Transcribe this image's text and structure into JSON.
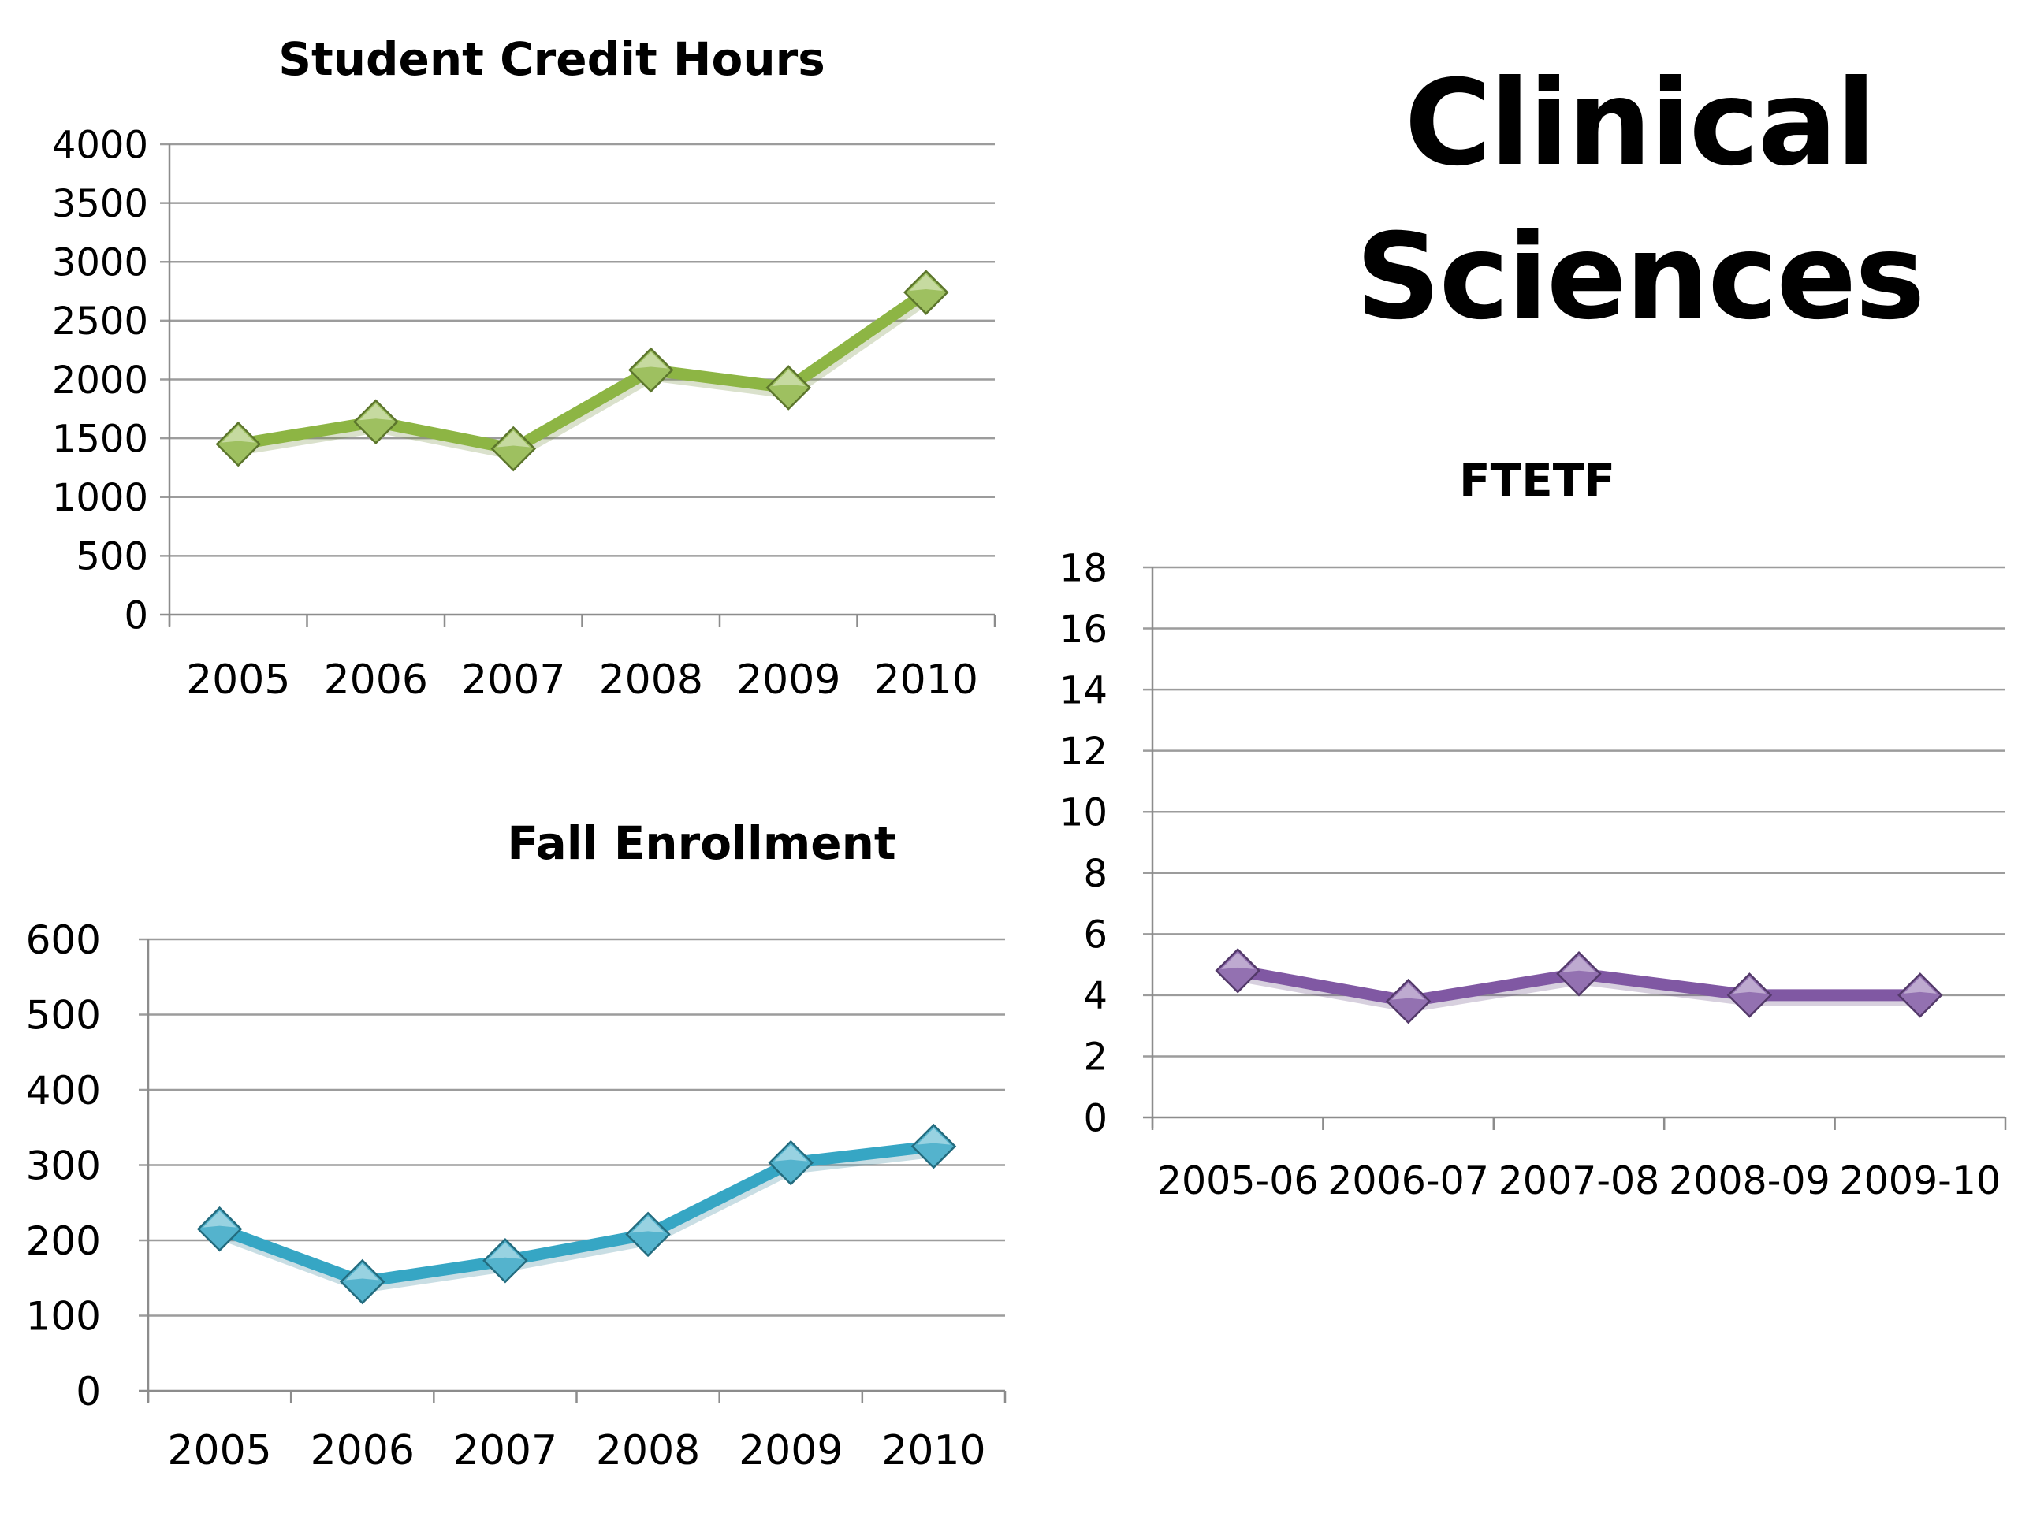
{
  "slide_title": [
    "Clinical",
    "Sciences"
  ],
  "colors": {
    "gridline": "#9c9c9c",
    "axis": "#8c8c8c",
    "text": "#000000"
  },
  "chart_data": [
    {
      "id": "credit-hours",
      "type": "line",
      "title": "Student Credit Hours",
      "xlabel": "",
      "ylabel": "",
      "categories": [
        "2005",
        "2006",
        "2007",
        "2008",
        "2009",
        "2010"
      ],
      "series": [
        {
          "values": [
            1450,
            1640,
            1410,
            2080,
            1930,
            2740
          ],
          "color": "#8db544",
          "marker": "diamond"
        }
      ],
      "ylim": [
        0,
        4000
      ],
      "yticks": [
        "0",
        "500",
        "1000",
        "1500",
        "2000",
        "2500",
        "3000",
        "3500",
        "4000"
      ],
      "grid": true,
      "legend": "none"
    },
    {
      "id": "fall-enrollment",
      "type": "line",
      "title": "Fall Enrollment",
      "xlabel": "",
      "ylabel": "",
      "categories": [
        "2005",
        "2006",
        "2007",
        "2008",
        "2009",
        "2010"
      ],
      "series": [
        {
          "values": [
            215,
            145,
            173,
            208,
            303,
            325
          ],
          "color": "#36a6c4",
          "marker": "diamond"
        }
      ],
      "ylim": [
        0,
        600
      ],
      "yticks": [
        "0",
        "100",
        "200",
        "300",
        "400",
        "500",
        "600"
      ],
      "grid": true,
      "legend": "none"
    },
    {
      "id": "ftetf",
      "type": "line",
      "title": "FTETF",
      "xlabel": "",
      "ylabel": "",
      "categories": [
        "2005-06",
        "2006-07",
        "2007-08",
        "2008-09",
        "2009-10"
      ],
      "series": [
        {
          "values": [
            4.8,
            3.8,
            4.7,
            4.0,
            4.0
          ],
          "color": "#8058a3",
          "marker": "diamond"
        }
      ],
      "ylim": [
        0,
        18
      ],
      "yticks": [
        "0",
        "2",
        "4",
        "6",
        "8",
        "10",
        "12",
        "14",
        "16",
        "18"
      ],
      "grid": true,
      "legend": "none"
    }
  ]
}
